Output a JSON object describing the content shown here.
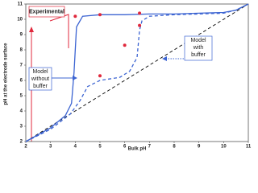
{
  "chart_data": {
    "type": "line",
    "xlabel": "Bulk pH",
    "ylabel": "pH at the electrode surface",
    "xlim": [
      2,
      11
    ],
    "ylim": [
      2,
      11
    ],
    "xticks": [
      2,
      3,
      4,
      5,
      6,
      7,
      8,
      9,
      10,
      11
    ],
    "yticks": [
      2,
      3,
      4,
      5,
      6,
      7,
      8,
      9,
      10,
      11
    ],
    "series": [
      {
        "color": "#000000",
        "style": "dashed",
        "x": [
          2,
          11
        ],
        "values": [
          2,
          11
        ]
      },
      {
        "color": "#3c64d2",
        "style": "solid",
        "x": [
          2,
          3,
          3.6,
          3.85,
          3.95,
          4.05,
          4.3,
          5,
          6,
          7,
          8,
          9,
          10,
          10.5,
          11
        ],
        "values": [
          2,
          2.9,
          3.7,
          4.5,
          6.5,
          9.5,
          10.2,
          10.3,
          10.3,
          10.35,
          10.35,
          10.4,
          10.45,
          10.6,
          11
        ]
      },
      {
        "color": "#3c64d2",
        "style": "dashed",
        "x": [
          2,
          3,
          3.8,
          4.2,
          4.5,
          5,
          5.8,
          6.2,
          6.5,
          6.6,
          6.7,
          7,
          8,
          9,
          10,
          10.5,
          11
        ],
        "values": [
          2,
          2.8,
          3.8,
          4.7,
          5.6,
          6,
          6.2,
          6.6,
          7.5,
          9.3,
          9.9,
          10.2,
          10.3,
          10.35,
          10.4,
          10.6,
          11
        ]
      },
      {
        "color": "#e0283c",
        "style": "markers",
        "x": [
          4,
          5,
          6.6,
          5,
          6,
          6.6
        ],
        "values": [
          10.2,
          10.3,
          10.4,
          6.3,
          8.3,
          9.6
        ]
      }
    ],
    "annotations": [
      {
        "lines": [
          "Experimental"
        ],
        "color": "#e0283c"
      },
      {
        "lines": [
          "Model",
          "without",
          "buffer"
        ],
        "color": "#3c64d2"
      },
      {
        "lines": [
          "Model",
          "with",
          "buffer"
        ],
        "color": "#3c64d2"
      }
    ]
  }
}
